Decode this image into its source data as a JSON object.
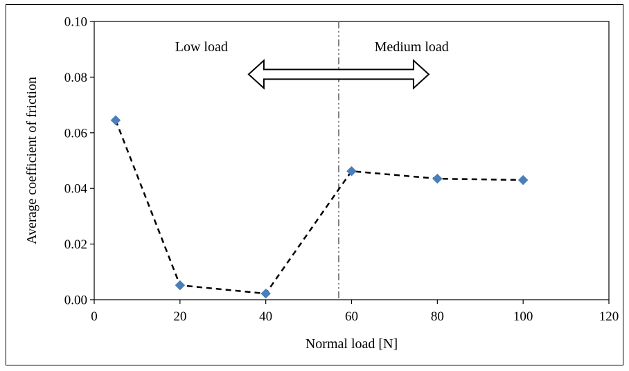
{
  "chart_data": {
    "type": "scatter",
    "title": "",
    "xlabel": "Normal load [N]",
    "ylabel": "Average coefficient of friction",
    "xlim": [
      0,
      120
    ],
    "ylim": [
      0,
      0.1
    ],
    "x_ticks": [
      "0",
      "20",
      "40",
      "60",
      "80",
      "100",
      "120"
    ],
    "y_ticks": [
      "0.00",
      "0.02",
      "0.04",
      "0.06",
      "0.08",
      "0.10"
    ],
    "grid": false,
    "legend": "none",
    "series": [
      {
        "marker": "diamond",
        "color": "#4a7ebb",
        "points": [
          {
            "x": 5,
            "y": 0.0645
          },
          {
            "x": 20,
            "y": 0.0052
          },
          {
            "x": 40,
            "y": 0.0022
          },
          {
            "x": 60,
            "y": 0.0462
          },
          {
            "x": 80,
            "y": 0.0435
          },
          {
            "x": 100,
            "y": 0.043
          }
        ]
      }
    ],
    "trend_line": {
      "style": "dashed",
      "color": "#000000",
      "points": [
        {
          "x": 5,
          "y": 0.0645
        },
        {
          "x": 20,
          "y": 0.0052
        },
        {
          "x": 40,
          "y": 0.0022
        },
        {
          "x": 56.7,
          "y": 0.039
        },
        {
          "x": 60,
          "y": 0.0462
        },
        {
          "x": 80,
          "y": 0.0435
        },
        {
          "x": 100,
          "y": 0.043
        }
      ]
    },
    "divider": {
      "x": 57,
      "style": "dash-dot",
      "color": "#808080"
    },
    "annotations": {
      "low_load": "Low load",
      "medium_load": "Medium load",
      "arrow": {
        "from_x": 36,
        "to_x": 78,
        "y": 0.081
      }
    }
  }
}
